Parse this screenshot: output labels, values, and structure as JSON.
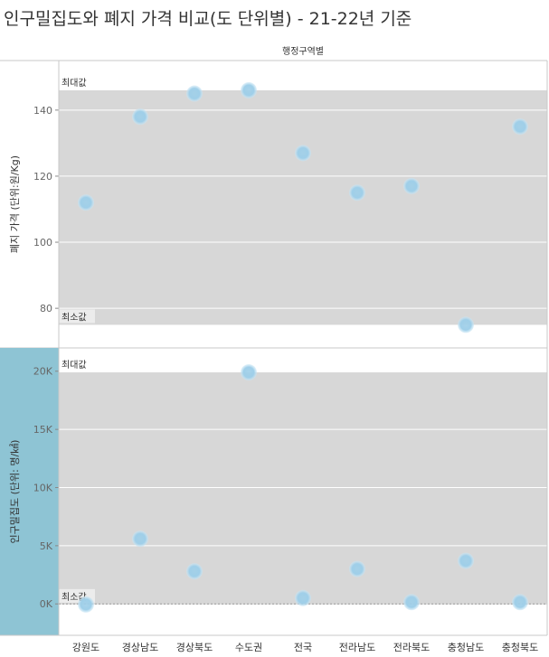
{
  "chart_data": {
    "type": "scatter",
    "title": "인구밀집도와 폐지 가격 비교(도 단위별) - 21-22년 기준",
    "column_header": "행정구역별",
    "categories": [
      "강원도",
      "경상남도",
      "경상북도",
      "수도권",
      "전국",
      "전라남도",
      "전라북도",
      "충청남도",
      "충청북도"
    ],
    "reference_labels": {
      "max": "최대값",
      "min": "최소값"
    },
    "panels": [
      {
        "ylabel": "폐지 가격 (단위:원/Kg)",
        "ylim": [
          68,
          155
        ],
        "ticks": [
          80,
          100,
          120,
          140
        ],
        "tick_labels": [
          "80",
          "100",
          "120",
          "140"
        ],
        "values": [
          112,
          138,
          145,
          146,
          127,
          115,
          117,
          75,
          135
        ],
        "band": [
          75,
          146
        ],
        "highlighted": false
      },
      {
        "ylabel": "인구밀집도 (단위: 명/㎢)",
        "ylim": [
          -2700,
          22000
        ],
        "ticks": [
          0,
          5000,
          10000,
          15000,
          20000
        ],
        "tick_labels": [
          "0K",
          "5K",
          "10K",
          "15K",
          "20K"
        ],
        "values": [
          -50,
          5600,
          2800,
          19900,
          500,
          3000,
          150,
          3700,
          150
        ],
        "band": [
          -50,
          19900
        ],
        "highlighted": true
      }
    ],
    "colors": {
      "band": "#d7d7d7",
      "marker": "#9fcfe9",
      "marker_glow": "#c9e6f5",
      "highlight_axis": "#8ec4d4",
      "grid": "#ffffff"
    },
    "grid": true
  }
}
